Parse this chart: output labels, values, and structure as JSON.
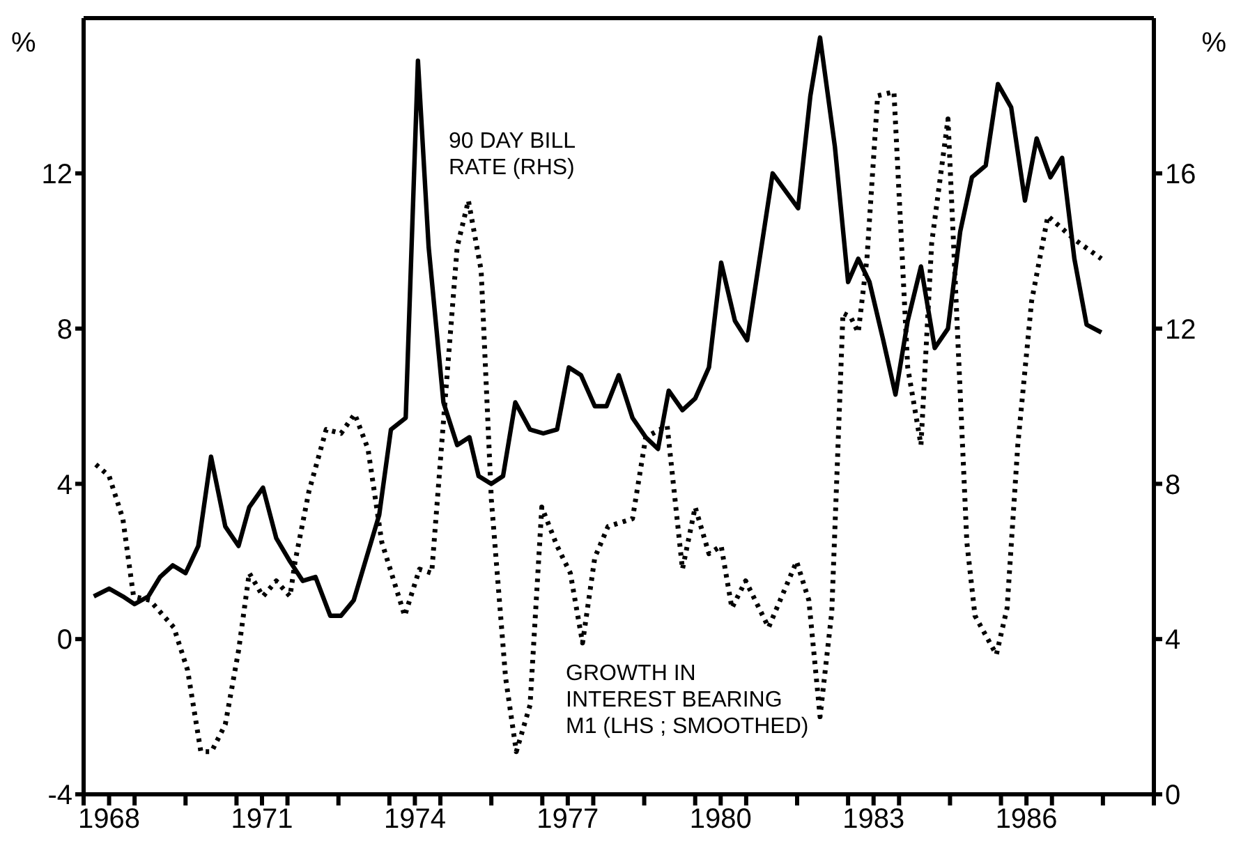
{
  "chart_data": {
    "type": "line",
    "ylabel": "%",
    "y2label": "%",
    "legend": false,
    "xlim": [
      1968,
      1989
    ],
    "xticks": [
      {
        "value": 1968,
        "label": null
      },
      {
        "value": 1968.5,
        "label": "1968"
      },
      {
        "value": 1969,
        "label": null
      },
      {
        "value": 1970,
        "label": null
      },
      {
        "value": 1971,
        "label": null
      },
      {
        "value": 1971.5,
        "label": "1971"
      },
      {
        "value": 1972,
        "label": null
      },
      {
        "value": 1973,
        "label": null
      },
      {
        "value": 1974,
        "label": null
      },
      {
        "value": 1974.5,
        "label": "1974"
      },
      {
        "value": 1975,
        "label": null
      },
      {
        "value": 1976,
        "label": null
      },
      {
        "value": 1977,
        "label": null
      },
      {
        "value": 1977.5,
        "label": "1977"
      },
      {
        "value": 1978,
        "label": null
      },
      {
        "value": 1979,
        "label": null
      },
      {
        "value": 1980,
        "label": null
      },
      {
        "value": 1980.5,
        "label": "1980"
      },
      {
        "value": 1981,
        "label": null
      },
      {
        "value": 1982,
        "label": null
      },
      {
        "value": 1983,
        "label": null
      },
      {
        "value": 1983.5,
        "label": "1983"
      },
      {
        "value": 1984,
        "label": null
      },
      {
        "value": 1985,
        "label": null
      },
      {
        "value": 1986,
        "label": null
      },
      {
        "value": 1986.5,
        "label": "1986"
      },
      {
        "value": 1987,
        "label": null
      },
      {
        "value": 1988,
        "label": null
      },
      {
        "value": 1989,
        "label": null
      }
    ],
    "ylim": [
      -4,
      16
    ],
    "yticks": [
      -4,
      0,
      4,
      8,
      12
    ],
    "y2lim": [
      0,
      20
    ],
    "y2ticks": [
      0,
      4,
      8,
      12,
      16
    ],
    "series": [
      {
        "name": "90 DAY BILL\nRATE (RHS)",
        "axis": "y2",
        "color": "#000000",
        "line_style": "solid",
        "x": [
          1968.2,
          1968.5,
          1968.77,
          1969.0,
          1969.27,
          1969.5,
          1969.75,
          1970.0,
          1970.25,
          1970.5,
          1970.78,
          1971.04,
          1971.25,
          1971.52,
          1971.78,
          1972.05,
          1972.3,
          1972.55,
          1972.84,
          1973.05,
          1973.3,
          1973.8,
          1974.03,
          1974.32,
          1974.56,
          1974.77,
          1975.06,
          1975.33,
          1975.57,
          1975.75,
          1976.0,
          1976.23,
          1976.47,
          1976.76,
          1977.02,
          1977.29,
          1977.52,
          1977.76,
          1978.03,
          1978.26,
          1978.5,
          1978.77,
          1979.03,
          1979.27,
          1979.48,
          1979.75,
          1980.0,
          1980.27,
          1980.51,
          1980.78,
          1981.02,
          1981.52,
          1982.02,
          1982.26,
          1982.45,
          1982.74,
          1983.0,
          1983.2,
          1983.42,
          1983.69,
          1983.93,
          1984.17,
          1984.43,
          1984.7,
          1984.96,
          1985.2,
          1985.43,
          1985.7,
          1985.94,
          1986.2,
          1986.47,
          1986.7,
          1986.97,
          1987.2,
          1987.44,
          1987.68,
          1987.97
        ],
        "values": [
          5.1,
          5.3,
          5.1,
          4.9,
          5.1,
          5.6,
          5.9,
          5.7,
          6.4,
          8.7,
          6.9,
          6.4,
          7.4,
          7.9,
          6.6,
          6.0,
          5.5,
          5.6,
          4.6,
          4.6,
          5.0,
          7.2,
          9.4,
          9.7,
          18.9,
          14.1,
          10.1,
          9.0,
          9.2,
          8.2,
          8.0,
          8.2,
          10.1,
          9.4,
          9.3,
          9.4,
          11.0,
          10.8,
          10.0,
          10.0,
          10.8,
          9.7,
          9.2,
          8.9,
          10.4,
          9.9,
          10.2,
          11.0,
          13.7,
          12.2,
          11.7,
          16.0,
          15.1,
          18.0,
          19.5,
          16.7,
          13.2,
          13.8,
          13.2,
          11.7,
          10.3,
          12.2,
          13.6,
          11.5,
          12.0,
          14.5,
          15.9,
          16.2,
          18.3,
          17.7,
          15.3,
          16.9,
          15.9,
          16.4,
          13.8,
          12.1,
          11.9
        ]
      },
      {
        "name": "GROWTH IN\nINTEREST BEARING\nM1 (LHS ; SMOOTHED)",
        "color": "#000000",
        "line_style": "dotted",
        "x": [
          1968.24,
          1968.5,
          1968.77,
          1968.98,
          1969.3,
          1969.77,
          1970.04,
          1970.3,
          1970.51,
          1970.78,
          1971.04,
          1971.25,
          1971.52,
          1971.78,
          1972.05,
          1972.15,
          1972.42,
          1972.76,
          1973.05,
          1973.32,
          1973.58,
          1973.85,
          1974.3,
          1974.59,
          1974.83,
          1975.06,
          1975.33,
          1975.55,
          1975.8,
          1976.0,
          1976.28,
          1976.49,
          1976.76,
          1976.99,
          1977.29,
          1977.55,
          1977.79,
          1978.03,
          1978.29,
          1978.77,
          1979.03,
          1979.45,
          1979.75,
          1980.0,
          1980.27,
          1980.51,
          1980.72,
          1980.99,
          1981.44,
          1981.99,
          1982.23,
          1982.45,
          1982.68,
          1982.9,
          1983.05,
          1983.2,
          1983.37,
          1983.58,
          1983.9,
          1984.17,
          1984.43,
          1984.64,
          1984.96,
          1985.12,
          1985.33,
          1985.49,
          1985.91,
          1986.12,
          1986.33,
          1986.6,
          1986.92,
          1987.44,
          1987.97
        ],
        "values": [
          4.5,
          4.2,
          3.1,
          1.1,
          1.0,
          0.3,
          -0.8,
          -2.9,
          -2.9,
          -2.2,
          -0.3,
          1.7,
          1.1,
          1.5,
          1.1,
          2.0,
          3.8,
          5.4,
          5.3,
          5.8,
          4.9,
          2.5,
          0.6,
          1.8,
          1.7,
          5.6,
          10.1,
          11.3,
          9.5,
          3.6,
          -1.0,
          -2.9,
          -1.7,
          3.4,
          2.4,
          1.7,
          -0.1,
          2.1,
          2.9,
          3.1,
          5.2,
          5.5,
          1.8,
          3.4,
          2.2,
          2.4,
          0.8,
          1.5,
          0.3,
          2.0,
          1.0,
          -2.0,
          0.7,
          8.4,
          8.3,
          7.9,
          9.8,
          14.0,
          14.1,
          7.0,
          5.0,
          10.2,
          13.4,
          8.7,
          2.5,
          0.6,
          -0.4,
          0.8,
          5.0,
          8.7,
          10.9,
          10.3,
          9.8
        ]
      }
    ]
  }
}
